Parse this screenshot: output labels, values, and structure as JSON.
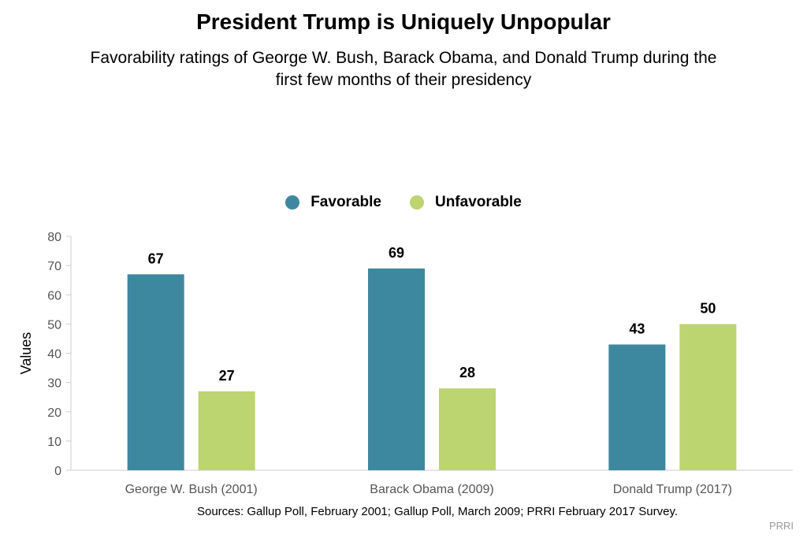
{
  "title": "President Trump is Uniquely Unpopular",
  "subtitle": "Favorability ratings of George W. Bush, Barack Obama, and Donald Trump during the first few months of their presidency",
  "source": "Sources: Gallup Poll, February 2001; Gallup Poll, March 2009; PRRI February 2017 Survey.",
  "credit": "PRRI",
  "colors": {
    "favorable": "#3d889e",
    "unfavorable": "#bcd571"
  },
  "chart_data": {
    "type": "bar",
    "categories": [
      "George W. Bush (2001)",
      "Barack Obama (2009)",
      "Donald Trump (2017)"
    ],
    "series": [
      {
        "name": "Favorable",
        "values": [
          67,
          69,
          43
        ]
      },
      {
        "name": "Unfavorable",
        "values": [
          27,
          28,
          50
        ]
      }
    ],
    "ylabel": "Values",
    "xlabel": "",
    "ylim": [
      0,
      80
    ],
    "yticks": [
      0,
      10,
      20,
      30,
      40,
      50,
      60,
      70,
      80
    ],
    "grid": false,
    "legend": "top",
    "data_labels": true
  }
}
